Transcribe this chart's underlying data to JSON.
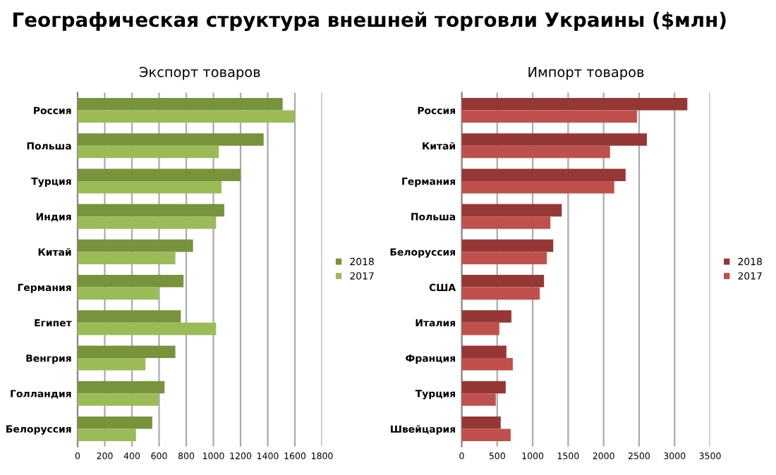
{
  "chart_data": [
    {
      "type": "bar",
      "orientation": "horizontal",
      "title": "Экспорт товаров",
      "annotations": [
        "Географическая структура внешней торговли Украины ($млн)"
      ],
      "categories": [
        "Россия",
        "Польша",
        "Турция",
        "Индия",
        "Китай",
        "Германия",
        "Египет",
        "Венгрия",
        "Голландия",
        "Белоруссия"
      ],
      "series": [
        {
          "name": "2018",
          "color": "#77933c",
          "values": [
            1510,
            1370,
            1200,
            1080,
            850,
            780,
            760,
            720,
            640,
            550
          ]
        },
        {
          "name": "2017",
          "color": "#9bbb59",
          "values": [
            1600,
            1040,
            1060,
            1020,
            720,
            600,
            1020,
            500,
            600,
            430
          ]
        }
      ],
      "xlim": [
        0,
        1800
      ],
      "xticks": [
        0,
        200,
        400,
        600,
        800,
        1000,
        1200,
        1400,
        1600,
        1800
      ],
      "grid": "x",
      "legend": "right"
    },
    {
      "type": "bar",
      "orientation": "horizontal",
      "title": "Импорт товаров",
      "categories": [
        "Россия",
        "Китай",
        "Германия",
        "Польша",
        "Белоруссия",
        "США",
        "Италия",
        "Франция",
        "Турция",
        "Швейцария"
      ],
      "series": [
        {
          "name": "2018",
          "color": "#953735",
          "values": [
            3180,
            2610,
            2310,
            1410,
            1290,
            1160,
            700,
            630,
            620,
            550
          ]
        },
        {
          "name": "2017",
          "color": "#c0504d",
          "values": [
            2470,
            2090,
            2150,
            1250,
            1200,
            1100,
            530,
            720,
            480,
            690
          ]
        }
      ],
      "xlim": [
        0,
        3500
      ],
      "xticks": [
        0,
        500,
        1000,
        1500,
        2000,
        2500,
        3000,
        3500
      ],
      "grid": "x",
      "legend": "right"
    }
  ]
}
